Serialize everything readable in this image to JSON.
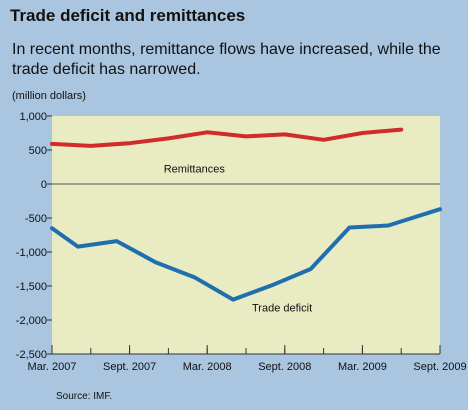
{
  "header": {
    "title": "Trade deficit and remittances",
    "subtitle": "In recent months, remittance flows have increased, while the trade deficit has narrowed.",
    "unit": "(million dollars)"
  },
  "source": "Source: IMF.",
  "colors": {
    "background": "#a9c5e0",
    "plot_background": "#e9ecc2",
    "remittances": "#d12b2b",
    "trade_deficit": "#1f6fae"
  },
  "chart_data": {
    "type": "line",
    "title": "Trade deficit and remittances",
    "ylabel": "(million dollars)",
    "xlabel": "",
    "ylim": [
      -2500,
      1000
    ],
    "yticks": [
      -2500,
      -2000,
      -1500,
      -1000,
      -500,
      0,
      500,
      1000
    ],
    "ytick_labels": [
      "-2,500",
      "-2,000",
      "-1,500",
      "-1,000",
      "-500",
      "0",
      "500",
      "1,000"
    ],
    "x_range": [
      "2007-03",
      "2009-09"
    ],
    "xtick_positions": [
      "2007-03",
      "2007-09",
      "2008-03",
      "2008-09",
      "2009-03",
      "2009-09"
    ],
    "xtick_labels": [
      "Mar. 2007",
      "Sept. 2007",
      "Mar. 2008",
      "Sept. 2008",
      "Mar. 2009",
      "Sept. 2009"
    ],
    "grid": "horizontal at 0 only",
    "series": [
      {
        "name": "Remittances",
        "color": "#d12b2b",
        "label_text": "Remittances",
        "points": [
          [
            "2007-03",
            590
          ],
          [
            "2007-06",
            560
          ],
          [
            "2007-09",
            600
          ],
          [
            "2007-12",
            670
          ],
          [
            "2008-03",
            760
          ],
          [
            "2008-06",
            700
          ],
          [
            "2008-09",
            730
          ],
          [
            "2008-12",
            650
          ],
          [
            "2009-03",
            750
          ],
          [
            "2009-06",
            800
          ]
        ]
      },
      {
        "name": "Trade deficit",
        "color": "#1f6fae",
        "label_text": "Trade deficit",
        "points": [
          [
            "2007-03",
            -650
          ],
          [
            "2007-05",
            -920
          ],
          [
            "2007-08",
            -840
          ],
          [
            "2007-11",
            -1150
          ],
          [
            "2008-02",
            -1370
          ],
          [
            "2008-05",
            -1700
          ],
          [
            "2008-08",
            -1490
          ],
          [
            "2008-11",
            -1250
          ],
          [
            "2009-02",
            -640
          ],
          [
            "2009-05",
            -610
          ],
          [
            "2009-09",
            -370
          ]
        ]
      }
    ]
  }
}
